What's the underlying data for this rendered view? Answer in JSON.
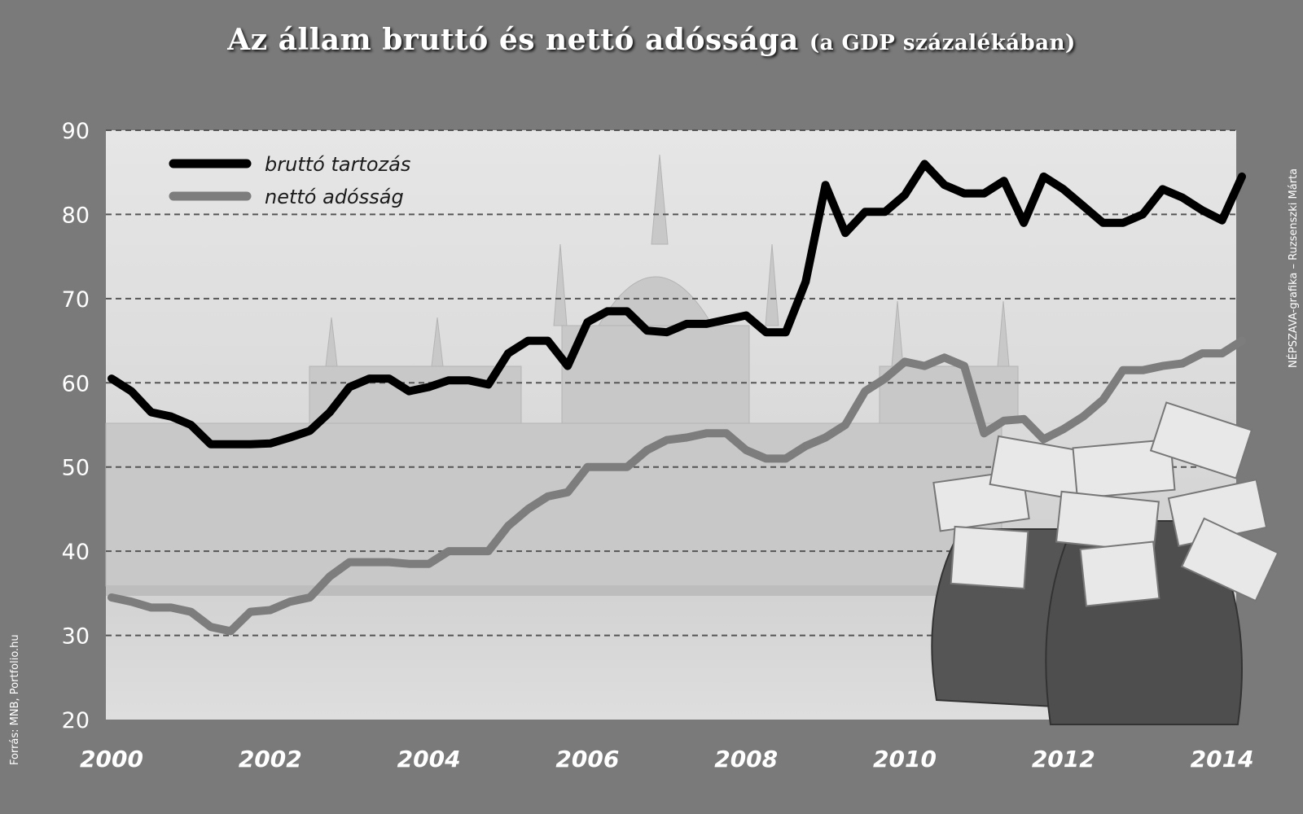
{
  "title": "Az állam bruttó és nettó adóssága",
  "subtitle": "(a GDP százalékában)",
  "source": "Forrás: MNB, Portfolio.hu",
  "credit": "NÉPSZAVA-grafika – Ruzsenszki Márta",
  "colors": {
    "background": "#7a7a7a",
    "plot": "#e2e2e2",
    "gross": "#000000",
    "net": "#7d7d7d",
    "grid": "#555555"
  },
  "chart_data": {
    "type": "line",
    "title": "Az állam bruttó és nettó adóssága",
    "subtitle": "(a GDP százalékában)",
    "xlabel": "",
    "ylabel": "",
    "xlim": [
      2000,
      2014.3
    ],
    "ylim": [
      20,
      90
    ],
    "y_ticks": [
      20,
      30,
      40,
      50,
      60,
      70,
      80,
      90
    ],
    "x_ticks": [
      "2000",
      "2002",
      "2004",
      "2006",
      "2008",
      "2010",
      "2012",
      "2014"
    ],
    "grid": true,
    "legend_position": "top-left",
    "series": [
      {
        "name": "bruttó tartozás",
        "color": "#000000",
        "x": [
          2000.0,
          2000.25,
          2000.5,
          2000.75,
          2001.0,
          2001.25,
          2001.5,
          2001.75,
          2002.0,
          2002.25,
          2002.5,
          2002.75,
          2003.0,
          2003.25,
          2003.5,
          2003.75,
          2004.0,
          2004.25,
          2004.5,
          2004.75,
          2005.0,
          2005.25,
          2005.5,
          2005.75,
          2006.0,
          2006.25,
          2006.5,
          2006.75,
          2007.0,
          2007.25,
          2007.5,
          2007.75,
          2008.0,
          2008.25,
          2008.5,
          2008.75,
          2009.0,
          2009.25,
          2009.5,
          2009.75,
          2010.0,
          2010.25,
          2010.5,
          2010.75,
          2011.0,
          2011.25,
          2011.5,
          2011.75,
          2012.0,
          2012.25,
          2012.5,
          2012.75,
          2013.0,
          2013.25,
          2013.5,
          2013.75,
          2014.0,
          2014.25
        ],
        "values": [
          60.5,
          59,
          56.5,
          56,
          55,
          52.7,
          52.7,
          52.7,
          52.8,
          53.5,
          54.3,
          56.5,
          59.5,
          60.5,
          60.5,
          59,
          59.5,
          60.3,
          60.3,
          59.8,
          63.5,
          65,
          65,
          62,
          67.2,
          68.5,
          68.5,
          66.2,
          66,
          67,
          67,
          67.5,
          68,
          66,
          66,
          72,
          83.5,
          77.8,
          80.3,
          80.3,
          82.3,
          86,
          83.5,
          82.5,
          82.5,
          84,
          79,
          84.5,
          83,
          81,
          79,
          79,
          80,
          83,
          82,
          80.5,
          79.3,
          84.5
        ]
      },
      {
        "name": "nettó adósság",
        "color": "#7d7d7d",
        "x": [
          2000.0,
          2000.25,
          2000.5,
          2000.75,
          2001.0,
          2001.25,
          2001.5,
          2001.75,
          2002.0,
          2002.25,
          2002.5,
          2002.75,
          2003.0,
          2003.25,
          2003.5,
          2003.75,
          2004.0,
          2004.25,
          2004.5,
          2004.75,
          2005.0,
          2005.25,
          2005.5,
          2005.75,
          2006.0,
          2006.25,
          2006.5,
          2006.75,
          2007.0,
          2007.25,
          2007.5,
          2007.75,
          2008.0,
          2008.25,
          2008.5,
          2008.75,
          2009.0,
          2009.25,
          2009.5,
          2009.75,
          2010.0,
          2010.25,
          2010.5,
          2010.75,
          2011.0,
          2011.25,
          2011.5,
          2011.75,
          2012.0,
          2012.25,
          2012.5,
          2012.75,
          2013.0,
          2013.25,
          2013.5,
          2013.75,
          2014.0,
          2014.25
        ],
        "values": [
          34.5,
          34,
          33.3,
          33.3,
          32.8,
          31,
          30.5,
          32.8,
          33,
          34,
          34.5,
          37,
          38.7,
          38.7,
          38.7,
          38.5,
          38.5,
          40,
          40,
          40,
          43,
          45,
          46.5,
          47,
          50,
          50,
          50,
          52,
          53.2,
          53.5,
          54,
          54,
          52,
          51,
          51,
          52.5,
          53.5,
          55,
          59,
          60.5,
          62.5,
          62,
          63,
          62,
          54,
          55.5,
          55.7,
          53.3,
          54.5,
          56,
          58,
          61.5,
          61.5,
          62,
          62.3,
          63.5,
          63.5,
          65
        ]
      }
    ]
  }
}
